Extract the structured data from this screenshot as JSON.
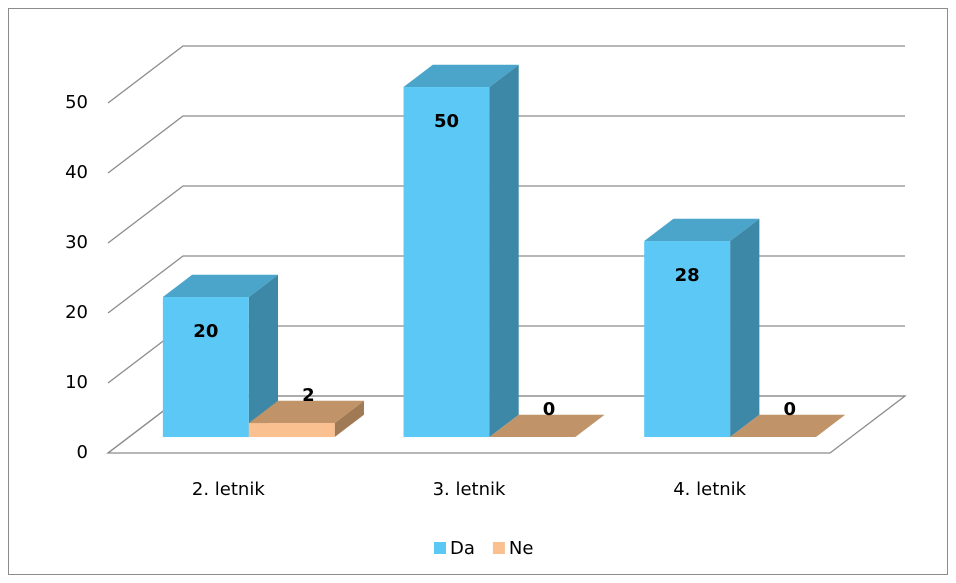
{
  "chart_data": {
    "type": "bar3d",
    "categories": [
      "2. letnik",
      "3. letnik",
      "4. letnik"
    ],
    "series": [
      {
        "name": "Da",
        "color": "#5bc8f5",
        "values": [
          20,
          50,
          28
        ]
      },
      {
        "name": "Ne",
        "color": "#fac090",
        "values": [
          2,
          0,
          0
        ]
      }
    ],
    "ylim": [
      0,
      50
    ],
    "yticks": [
      0,
      10,
      20,
      30,
      40,
      50
    ],
    "grid": true,
    "legend": "bottom"
  }
}
